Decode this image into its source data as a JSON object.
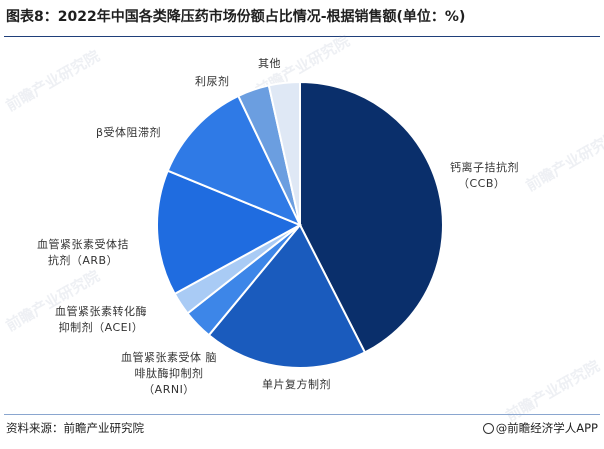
{
  "title": "图表8：2022年中国各类降压药市场份额占比情况-根据销售额(单位：%)",
  "source": "资料来源：前瞻产业研究院",
  "brand": "@前瞻经济学人APP",
  "watermark": "前瞻产业研究院",
  "chart_data": {
    "type": "pie",
    "start": "12 o'clock",
    "direction": "clockwise",
    "slices": [
      {
        "key": "ccb",
        "label_lines": [
          "钙离子拮抗剂",
          "（CCB）"
        ],
        "value": 42.5,
        "color": "#0a2f6b"
      },
      {
        "key": "single",
        "label_lines": [
          "单片复方制剂"
        ],
        "value": 18.5,
        "color": "#1a5bbd"
      },
      {
        "key": "arni",
        "label_lines": [
          "血管紧张素受体 脑",
          "啡肽酶抑制剂",
          "（ARNI）"
        ],
        "value": 3.4,
        "color": "#3d86e8"
      },
      {
        "key": "acei",
        "label_lines": [
          "血管紧张素转化酶",
          "抑制剂（ACEI）"
        ],
        "value": 2.6,
        "color": "#a9cbf5"
      },
      {
        "key": "arb",
        "label_lines": [
          "血管紧张素受体拮",
          "抗剂（ARB）"
        ],
        "value": 14.2,
        "color": "#1f6ce0"
      },
      {
        "key": "beta",
        "label_lines": [
          "β受体阻滞剂"
        ],
        "value": 11.7,
        "color": "#2f7ae6"
      },
      {
        "key": "diuretic",
        "label_lines": [
          "利尿剂"
        ],
        "value": 3.6,
        "color": "#6b9ee0"
      },
      {
        "key": "other",
        "label_lines": [
          "其他"
        ],
        "value": 3.5,
        "color": "#dfe8f5"
      }
    ]
  }
}
